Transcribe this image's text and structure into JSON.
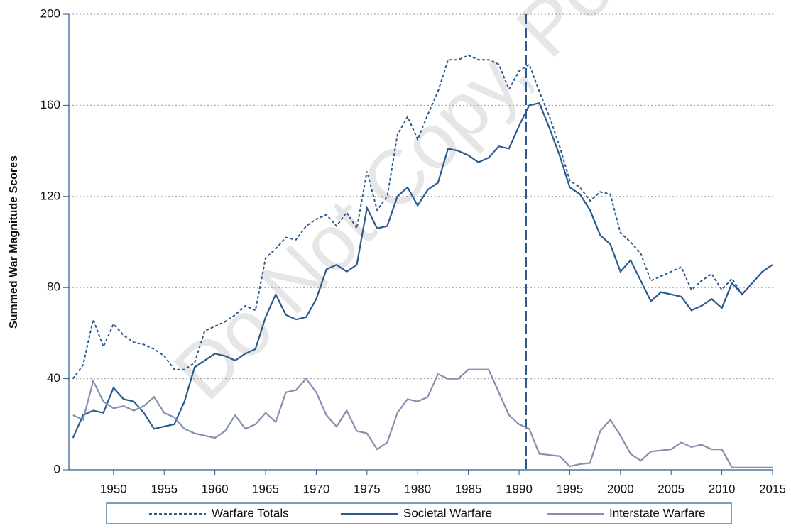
{
  "chart_data": {
    "type": "line",
    "y_label": "Summed War Magnitude Scores",
    "watermark": "Do Not Copy, Po",
    "x": [
      1946,
      1947,
      1948,
      1949,
      1950,
      1951,
      1952,
      1953,
      1954,
      1955,
      1956,
      1957,
      1958,
      1959,
      1960,
      1961,
      1962,
      1963,
      1964,
      1965,
      1966,
      1967,
      1968,
      1969,
      1970,
      1971,
      1972,
      1973,
      1974,
      1975,
      1976,
      1977,
      1978,
      1979,
      1980,
      1981,
      1982,
      1983,
      1984,
      1985,
      1986,
      1987,
      1988,
      1989,
      1990,
      1991,
      1992,
      1993,
      1994,
      1995,
      1996,
      1997,
      1998,
      1999,
      2000,
      2001,
      2002,
      2003,
      2004,
      2005,
      2006,
      2007,
      2008,
      2009,
      2010,
      2011,
      2012,
      2013,
      2014,
      2015
    ],
    "series": [
      {
        "name": "Warfare Totals",
        "color": "#2b5a8c",
        "dashed": true,
        "values": [
          40,
          46,
          66,
          54,
          64,
          59,
          56,
          55,
          53,
          50,
          44,
          44,
          47,
          61,
          63,
          65,
          68,
          72,
          70,
          93,
          97,
          102,
          101,
          107,
          110,
          112,
          107,
          113,
          106,
          131,
          114,
          120,
          147,
          155,
          145,
          156,
          166,
          180,
          180,
          182,
          180,
          180,
          178,
          167,
          175,
          178,
          166,
          155,
          142,
          127,
          124,
          118,
          122,
          121,
          104,
          100,
          95,
          83,
          85,
          87,
          89,
          79,
          83,
          86,
          79,
          84,
          77,
          82,
          87,
          90
        ]
      },
      {
        "name": "Societal Warfare",
        "color": "#2b5a8c",
        "dashed": false,
        "values": [
          14,
          24,
          26,
          25,
          36,
          31,
          30,
          25,
          18,
          19,
          20,
          30,
          45,
          48,
          51,
          50,
          48,
          51,
          53,
          67,
          77,
          68,
          66,
          67,
          75,
          88,
          90,
          87,
          90,
          115,
          106,
          107,
          120,
          124,
          116,
          123,
          126,
          141,
          140,
          138,
          135,
          137,
          142,
          141,
          151,
          160,
          161,
          150,
          138,
          124,
          121,
          114,
          103,
          99,
          87,
          92,
          83,
          74,
          78,
          77,
          76,
          70,
          72,
          75,
          71,
          82,
          77,
          82,
          87,
          90
        ]
      },
      {
        "name": "Interstate Warfare",
        "color": "#8590b0",
        "dashed": false,
        "values": [
          24,
          22,
          39,
          30,
          27,
          28,
          26,
          28,
          32,
          25,
          23,
          18,
          16,
          15,
          14,
          17,
          24,
          18,
          20,
          25,
          21,
          34,
          35,
          40,
          34,
          24,
          19,
          26,
          17,
          16,
          9,
          12,
          25,
          31,
          30,
          32,
          42,
          40,
          40,
          44,
          44,
          44,
          34,
          24,
          20,
          18,
          7,
          6.5,
          6,
          1.5,
          2.5,
          3,
          17,
          22,
          15,
          7,
          4,
          8,
          8.5,
          9,
          12,
          10,
          11,
          9,
          9,
          1,
          1,
          1,
          1,
          1
        ]
      }
    ],
    "reference_x": 1990.7,
    "xlim": [
      1945.6,
      2015
    ],
    "xticks": [
      1950,
      1955,
      1960,
      1965,
      1970,
      1975,
      1980,
      1985,
      1990,
      1995,
      2000,
      2005,
      2010,
      2015
    ],
    "ylim": [
      0,
      200
    ],
    "yticks": [
      0,
      40,
      80,
      120,
      160,
      200
    ],
    "grid": true
  }
}
